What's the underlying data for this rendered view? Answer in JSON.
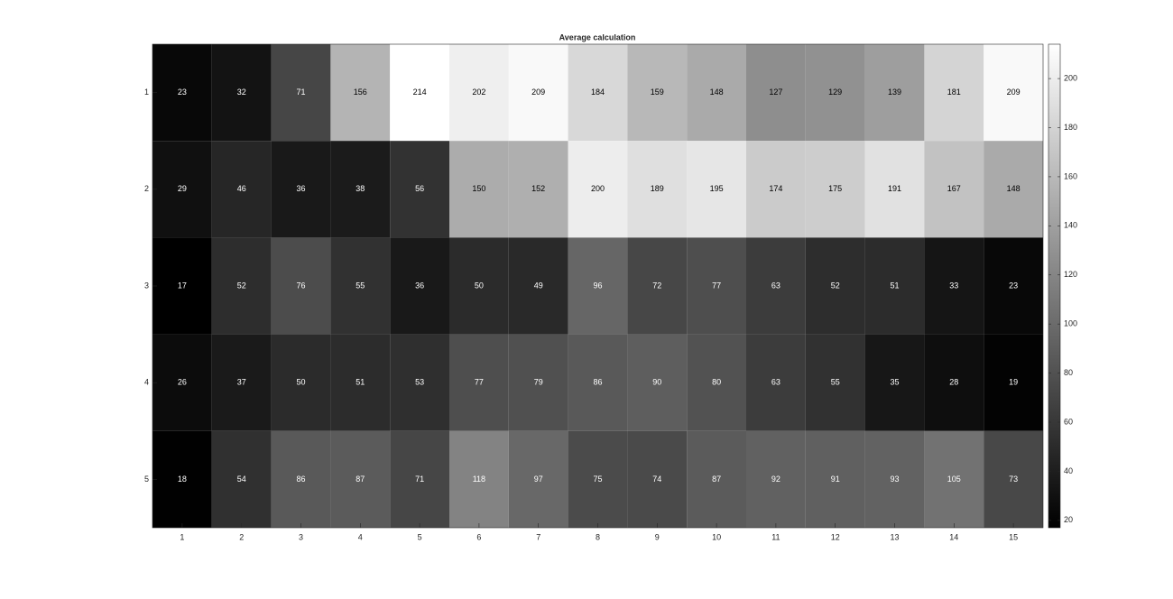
{
  "chart_data": {
    "type": "heatmap",
    "title": "Average calculation",
    "xticks": [
      1,
      2,
      3,
      4,
      5,
      6,
      7,
      8,
      9,
      10,
      11,
      12,
      13,
      14,
      15
    ],
    "xlim": [
      0.5,
      15.5
    ],
    "yticks": [
      1,
      2,
      3,
      4,
      5
    ],
    "ylim": [
      0.5,
      5.5
    ],
    "values": [
      [
        23,
        32,
        71,
        156,
        214,
        202,
        209,
        184,
        159,
        148,
        127,
        129,
        139,
        181,
        209
      ],
      [
        29,
        46,
        36,
        38,
        56,
        150,
        152,
        200,
        189,
        195,
        174,
        175,
        191,
        167,
        148
      ],
      [
        17,
        52,
        76,
        55,
        36,
        50,
        49,
        96,
        72,
        77,
        63,
        52,
        51,
        33,
        23
      ],
      [
        26,
        37,
        50,
        51,
        53,
        77,
        79,
        86,
        90,
        80,
        63,
        55,
        35,
        28,
        19
      ],
      [
        18,
        54,
        86,
        87,
        71,
        118,
        97,
        75,
        74,
        87,
        92,
        91,
        93,
        105,
        73
      ]
    ],
    "colormap": "gray",
    "clim": [
      17,
      214
    ],
    "cticks": [
      20,
      40,
      60,
      80,
      100,
      120,
      140,
      160,
      180,
      200
    ]
  }
}
